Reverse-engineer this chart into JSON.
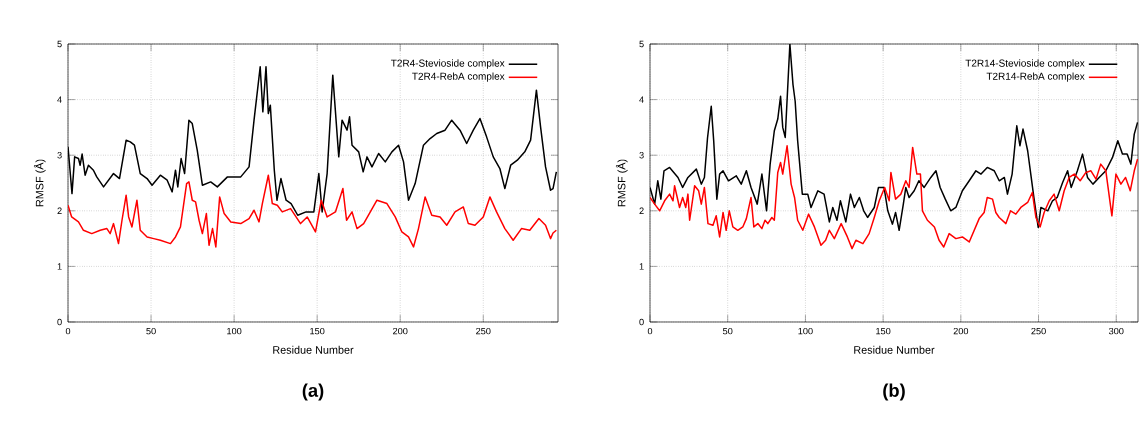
{
  "chart_data": [
    {
      "type": "line",
      "xlabel": "Residue Number",
      "ylabel": "RMSF (Å)",
      "annotations": [
        "(a)"
      ],
      "xlim": [
        0,
        295
      ],
      "ylim": [
        0,
        5
      ],
      "xticks": [
        0,
        50,
        100,
        150,
        200,
        250
      ],
      "yticks": [
        0,
        1,
        2,
        3,
        4,
        5
      ],
      "grid": true,
      "legend": "top right",
      "series": [
        {
          "name": "T2R4-Stevioside complex",
          "color": "#000000",
          "x": [
            0,
            2.4,
            4,
            6.3,
            7.3,
            8.5,
            10.3,
            12.3,
            15.3,
            17.3,
            21.4,
            27.4,
            31,
            35,
            37.5,
            40,
            43.5,
            47.6,
            50.6,
            55.6,
            59.7,
            62.7,
            64.7,
            66.1,
            68.1,
            70.2,
            72.8,
            74.8,
            77.8,
            80.9,
            85.9,
            89.9,
            96,
            104,
            109,
            112,
            115.7,
            117.3,
            119.2,
            120.6,
            121.8,
            124.2,
            125.8,
            128.2,
            131.3,
            134.3,
            138.3,
            143.3,
            148,
            151,
            153,
            156,
            159.4,
            163,
            165,
            168,
            169.5,
            171,
            175,
            177.7,
            180,
            183,
            187,
            191,
            195,
            199,
            202,
            205,
            209,
            214,
            218,
            222,
            227,
            231,
            236,
            240,
            244,
            248,
            252,
            256,
            260,
            263,
            266.5,
            270.5,
            275,
            278.5,
            282,
            284.5,
            287.5,
            290.5,
            292,
            294
          ],
          "values": [
            3.15,
            2.31,
            2.97,
            2.94,
            2.82,
            3.02,
            2.64,
            2.82,
            2.73,
            2.61,
            2.43,
            2.67,
            2.58,
            3.27,
            3.24,
            3.18,
            2.67,
            2.58,
            2.46,
            2.64,
            2.55,
            2.34,
            2.73,
            2.43,
            2.94,
            2.67,
            3.63,
            3.57,
            3.09,
            2.46,
            2.52,
            2.43,
            2.61,
            2.61,
            2.79,
            3.63,
            4.59,
            3.78,
            4.59,
            3.75,
            3.9,
            2.73,
            2.19,
            2.58,
            2.19,
            2.13,
            1.92,
            1.98,
            1.98,
            2.67,
            1.98,
            2.67,
            4.44,
            2.97,
            3.63,
            3.45,
            3.69,
            3.18,
            3.06,
            2.7,
            2.97,
            2.79,
            3.03,
            2.88,
            3.06,
            3.18,
            2.88,
            2.19,
            2.49,
            3.18,
            3.3,
            3.39,
            3.45,
            3.63,
            3.45,
            3.21,
            3.45,
            3.66,
            3.33,
            2.97,
            2.76,
            2.4,
            2.82,
            2.91,
            3.06,
            3.27,
            4.17,
            3.51,
            2.79,
            2.37,
            2.4,
            2.7
          ]
        },
        {
          "name": "T2R4-RebA complex",
          "color": "#ff0000",
          "x": [
            0,
            2.2,
            6.3,
            9.3,
            14.3,
            19.4,
            23.4,
            25.4,
            27.4,
            30.4,
            32.5,
            35,
            36.5,
            38.5,
            41.5,
            43.5,
            47.6,
            51.6,
            55.6,
            61.7,
            64.7,
            67.7,
            71.4,
            72.8,
            74.8,
            76.8,
            78.9,
            80.9,
            83.3,
            84.9,
            87,
            89,
            91.3,
            94,
            98,
            104,
            109,
            112,
            115,
            117,
            120.6,
            123,
            126,
            129,
            134,
            140,
            144,
            149,
            152.5,
            156,
            161,
            165.5,
            167.7,
            171,
            174,
            178,
            182,
            186,
            192,
            197,
            201,
            205,
            208,
            211,
            215,
            219,
            224,
            228,
            233,
            238,
            241,
            245,
            250,
            254,
            258,
            263,
            268,
            273,
            278,
            283.5,
            287.5,
            290.5,
            292,
            294
          ],
          "values": [
            2.1,
            1.89,
            1.8,
            1.65,
            1.59,
            1.65,
            1.68,
            1.59,
            1.77,
            1.41,
            1.83,
            2.28,
            1.89,
            1.71,
            2.19,
            1.65,
            1.53,
            1.5,
            1.47,
            1.41,
            1.53,
            1.71,
            2.49,
            2.52,
            2.19,
            2.16,
            1.83,
            1.59,
            1.95,
            1.38,
            1.68,
            1.35,
            2.25,
            1.95,
            1.8,
            1.77,
            1.86,
            2.01,
            1.8,
            2.13,
            2.64,
            2.13,
            2.1,
            1.98,
            2.04,
            1.77,
            1.89,
            1.62,
            2.19,
            1.89,
            1.98,
            2.4,
            1.83,
            1.98,
            1.68,
            1.77,
            1.98,
            2.19,
            2.13,
            1.89,
            1.62,
            1.53,
            1.35,
            1.68,
            2.25,
            1.92,
            1.89,
            1.74,
            1.98,
            2.07,
            1.77,
            1.74,
            1.89,
            2.25,
            1.98,
            1.68,
            1.47,
            1.68,
            1.65,
            1.86,
            1.74,
            1.5,
            1.6,
            1.65
          ]
        }
      ]
    },
    {
      "type": "line",
      "xlabel": "Residue Number",
      "ylabel": "RMSF (Å)",
      "annotations": [
        "(b)"
      ],
      "xlim": [
        0,
        314
      ],
      "ylim": [
        0,
        5
      ],
      "xticks": [
        0,
        50,
        100,
        150,
        200,
        250,
        300
      ],
      "yticks": [
        0,
        1,
        2,
        3,
        4,
        5
      ],
      "grid": true,
      "legend": "top right",
      "series": [
        {
          "name": "T2R14-Stevioside complex",
          "color": "#000000",
          "x": [
            0,
            3,
            5,
            7,
            9,
            12.6,
            18,
            21,
            24.4,
            29.8,
            33,
            35,
            37,
            39.4,
            41,
            43,
            44.8,
            47,
            50.5,
            55.5,
            58.7,
            62,
            65,
            69,
            72,
            75,
            77.3,
            80,
            82.2,
            84,
            85.4,
            87,
            90,
            92,
            93.4,
            95,
            98,
            101.5,
            103.6,
            108,
            112,
            115.4,
            117.6,
            120.3,
            122.5,
            126,
            129,
            131.5,
            134.7,
            137.5,
            140,
            144.3,
            147,
            150.6,
            153,
            156,
            158,
            160.3,
            163,
            164.6,
            166.7,
            170,
            173,
            176.4,
            180.7,
            184,
            186.7,
            190,
            193.5,
            196.8,
            201,
            205.4,
            209.7,
            213,
            217,
            221.5,
            224.7,
            228,
            230,
            233,
            236,
            238,
            240,
            243,
            245,
            247,
            249.8,
            251.5,
            256,
            259,
            262,
            265.5,
            268.7,
            271,
            275,
            278.3,
            281.5,
            285,
            289,
            293.3,
            297.6,
            301,
            304,
            307,
            309.4,
            311.6,
            313.7
          ],
          "values": [
            2.42,
            2.12,
            2.54,
            2.21,
            2.72,
            2.78,
            2.6,
            2.42,
            2.6,
            2.75,
            2.48,
            2.6,
            3.31,
            3.88,
            3.25,
            2.21,
            2.66,
            2.72,
            2.54,
            2.63,
            2.48,
            2.72,
            2.42,
            2.12,
            2.66,
            2.0,
            2.84,
            3.44,
            3.65,
            4.06,
            3.5,
            3.32,
            5.0,
            4.27,
            3.97,
            3.26,
            2.3,
            2.3,
            2.06,
            2.36,
            2.3,
            1.8,
            2.06,
            1.83,
            2.18,
            1.8,
            2.3,
            2.06,
            2.24,
            2.0,
            1.88,
            2.06,
            2.42,
            2.42,
            2.0,
            1.76,
            1.97,
            1.65,
            2.12,
            2.42,
            2.24,
            2.36,
            2.54,
            2.42,
            2.6,
            2.72,
            2.42,
            2.21,
            2.0,
            2.06,
            2.36,
            2.54,
            2.72,
            2.66,
            2.78,
            2.72,
            2.54,
            2.6,
            2.3,
            2.66,
            3.53,
            3.17,
            3.47,
            3.08,
            2.66,
            2.24,
            1.7,
            2.06,
            2.0,
            2.18,
            2.24,
            2.51,
            2.72,
            2.42,
            2.72,
            3.02,
            2.6,
            2.48,
            2.6,
            2.72,
            2.96,
            3.26,
            3.02,
            3.02,
            2.84,
            3.38,
            3.59
          ]
        },
        {
          "name": "T2R14-RebA complex",
          "color": "#ff0000",
          "x": [
            0,
            3,
            6.2,
            9.4,
            12.6,
            14.8,
            15.8,
            19,
            21,
            23,
            24.4,
            25.5,
            28.7,
            31.3,
            33,
            35,
            37.3,
            40.5,
            42.6,
            44.8,
            47,
            49,
            51,
            53.3,
            56.5,
            59.7,
            62,
            65,
            66.8,
            69.4,
            72,
            74,
            75.8,
            78.4,
            80,
            82.2,
            84,
            85.4,
            88.2,
            90.8,
            93,
            95,
            98.3,
            102,
            105.8,
            110,
            113,
            115.4,
            118.6,
            123,
            127,
            130,
            132.5,
            137,
            141,
            144.3,
            147.5,
            151,
            153.9,
            155,
            158,
            161.4,
            164.6,
            166.7,
            169,
            171.7,
            174,
            175.3,
            178.5,
            183,
            186,
            189,
            192.5,
            196.8,
            201,
            205.4,
            208.6,
            211.8,
            215,
            217,
            220.4,
            222.5,
            224.7,
            229,
            232,
            235.4,
            238.6,
            243,
            246,
            248.3,
            251,
            253.6,
            256.9,
            260,
            263.3,
            266.5,
            269.7,
            273,
            276.8,
            280.5,
            283.7,
            287,
            290,
            293.3,
            297.2,
            299.8,
            303,
            306,
            309,
            311.6,
            313.7
          ],
          "values": [
            2.24,
            2.12,
            2.0,
            2.18,
            2.3,
            2.18,
            2.45,
            2.06,
            2.24,
            2.06,
            2.3,
            1.83,
            2.45,
            2.36,
            2.12,
            2.42,
            1.77,
            1.74,
            1.91,
            1.53,
            1.97,
            1.65,
            2.0,
            1.71,
            1.65,
            1.71,
            1.86,
            2.24,
            1.71,
            1.77,
            1.68,
            1.83,
            1.77,
            1.88,
            1.83,
            2.69,
            2.87,
            2.66,
            3.17,
            2.48,
            2.24,
            1.83,
            1.65,
            1.94,
            1.71,
            1.38,
            1.47,
            1.65,
            1.5,
            1.77,
            1.53,
            1.32,
            1.47,
            1.41,
            1.59,
            1.88,
            2.18,
            2.42,
            2.18,
            2.69,
            2.21,
            2.3,
            2.54,
            2.42,
            3.14,
            2.66,
            2.66,
            2.0,
            1.83,
            1.71,
            1.47,
            1.35,
            1.59,
            1.5,
            1.53,
            1.44,
            1.65,
            1.86,
            1.97,
            2.24,
            2.21,
            1.97,
            1.88,
            1.77,
            2.0,
            1.94,
            2.06,
            2.15,
            2.33,
            1.88,
            1.71,
            1.97,
            2.18,
            2.3,
            2.0,
            2.36,
            2.6,
            2.66,
            2.54,
            2.69,
            2.72,
            2.57,
            2.84,
            2.72,
            1.91,
            2.66,
            2.48,
            2.6,
            2.36,
            2.72,
            2.93
          ]
        }
      ]
    }
  ]
}
